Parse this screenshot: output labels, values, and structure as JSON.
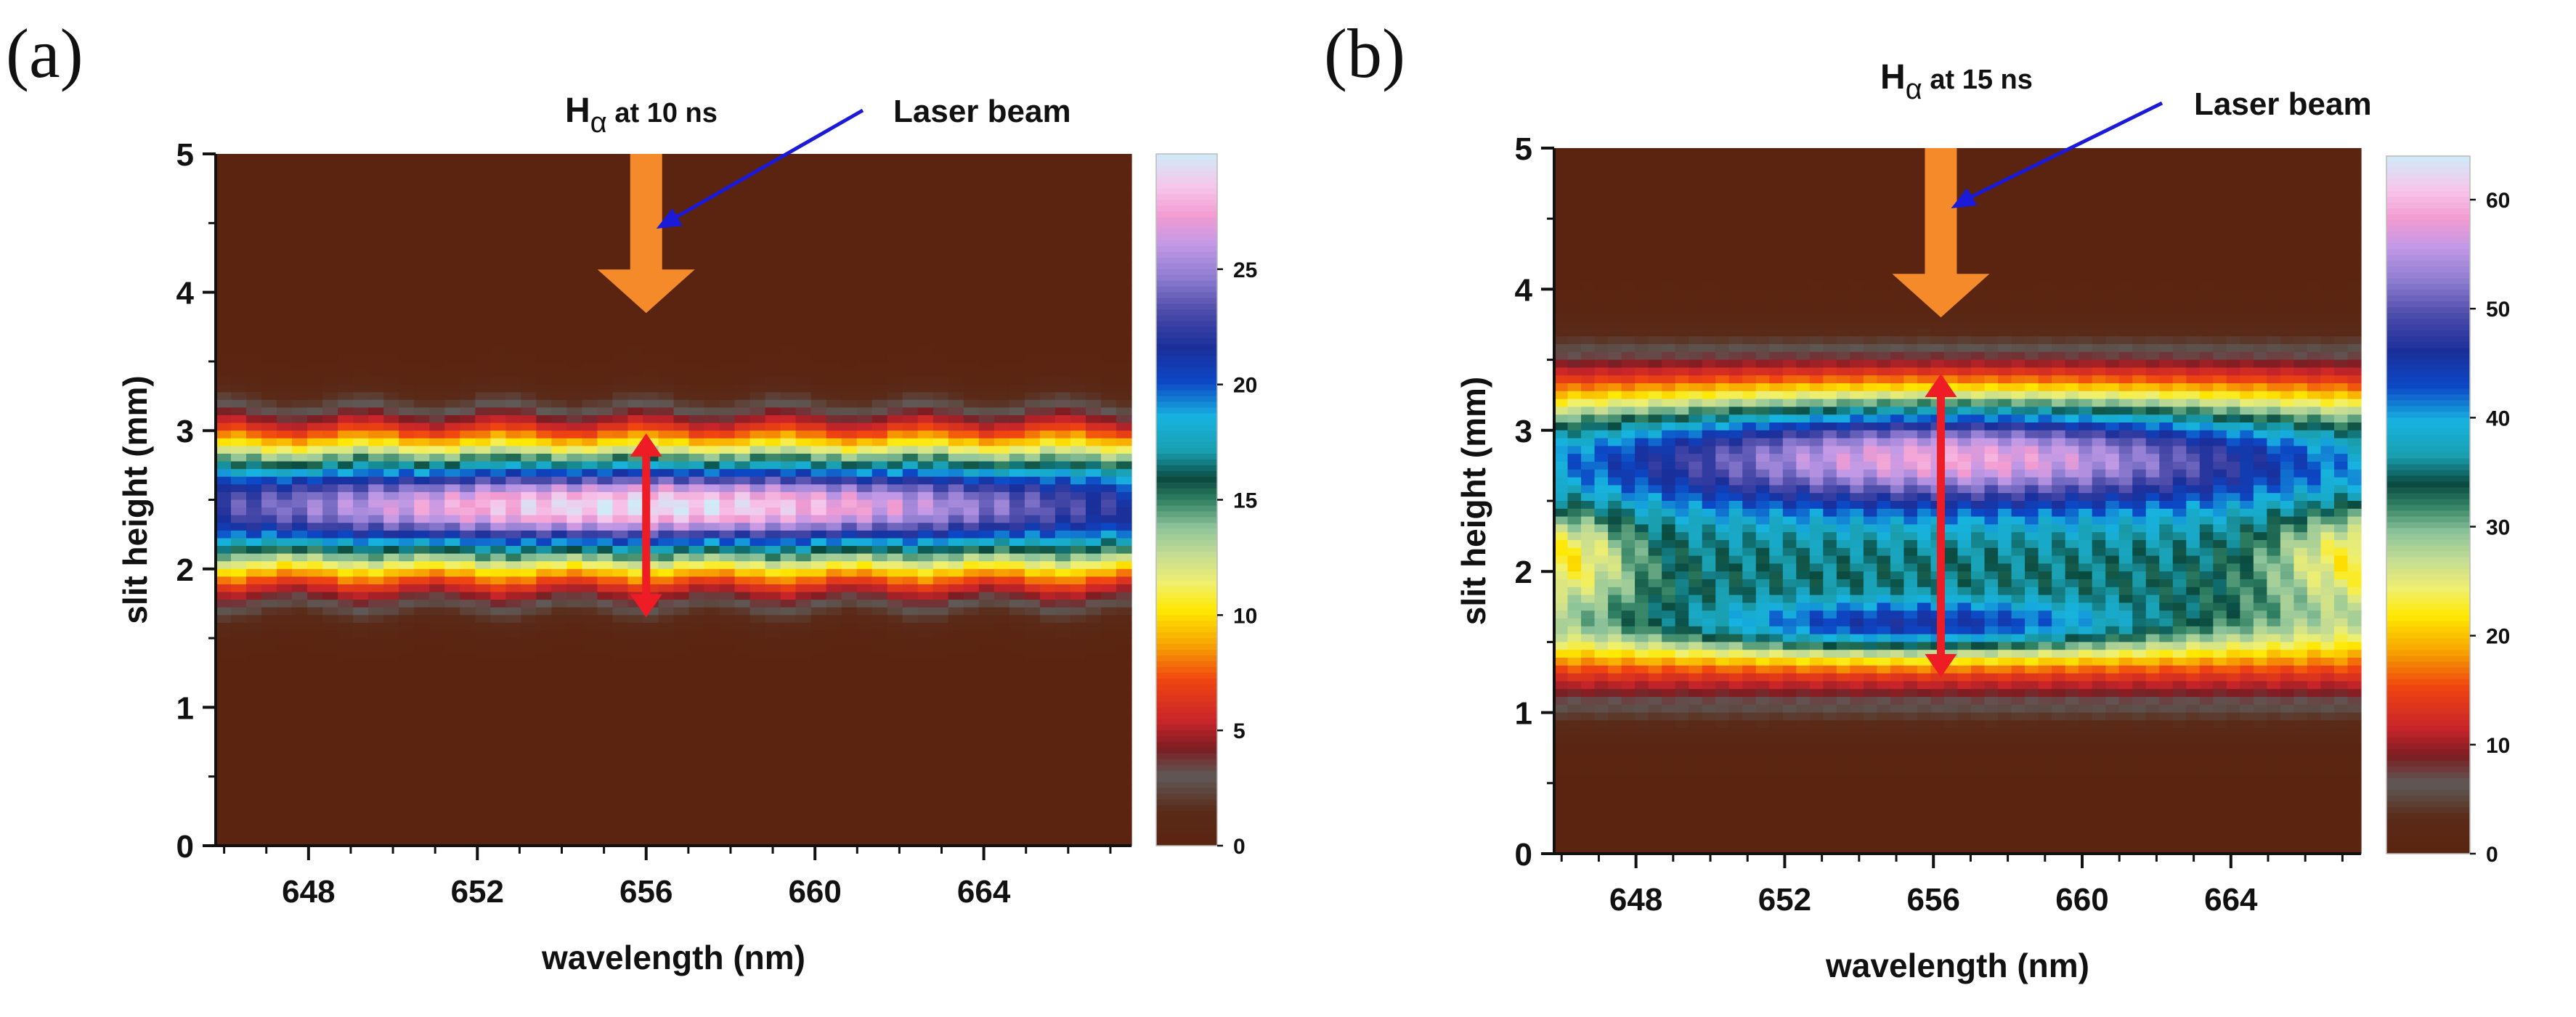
{
  "chart_data": [
    {
      "type": "heatmap",
      "panel_label": "(a)",
      "title_main": "H",
      "title_sub": "α",
      "title_suffix": " at 10 ns",
      "annotation": "Laser beam",
      "xlabel": "wavelength (nm)",
      "ylabel": "slit height (mm)",
      "xlim": [
        645.8,
        667.5
      ],
      "ylim": [
        0,
        5
      ],
      "xticks": [
        648,
        652,
        656,
        660,
        664
      ],
      "yticks": [
        0,
        1,
        2,
        3,
        4,
        5
      ],
      "colorbar": {
        "range": [
          0,
          30
        ],
        "ticks": [
          0,
          5,
          10,
          15,
          20,
          25
        ]
      },
      "features": {
        "band_center_mm": 2.45,
        "peak_value": 29,
        "arrow_wavelength_nm": 656.0,
        "arrow_span_mm": [
          1.65,
          2.98
        ],
        "laser_arrow_span_mm": [
          3.85,
          5.0
        ]
      }
    },
    {
      "type": "heatmap",
      "panel_label": "(b)",
      "title_main": "H",
      "title_sub": "α",
      "title_suffix": " at 15 ns",
      "annotation": "Laser beam",
      "xlabel": "wavelength (nm)",
      "ylabel": "slit height (mm)",
      "xlim": [
        645.8,
        667.5
      ],
      "ylim": [
        0,
        5
      ],
      "xticks": [
        648,
        652,
        656,
        660,
        664
      ],
      "yticks": [
        0,
        1,
        2,
        3,
        4,
        5
      ],
      "colorbar": {
        "range": [
          0,
          64
        ],
        "ticks": [
          0,
          10,
          20,
          30,
          40,
          50,
          60
        ]
      },
      "features": {
        "upper_lobe_center_mm": 2.85,
        "lower_lobe_center_mm": 1.6,
        "peak_value": 62,
        "arrow_wavelength_nm": 656.2,
        "arrow_span_mm": [
          1.25,
          3.4
        ],
        "laser_arrow_span_mm": [
          3.8,
          5.0
        ]
      }
    }
  ]
}
